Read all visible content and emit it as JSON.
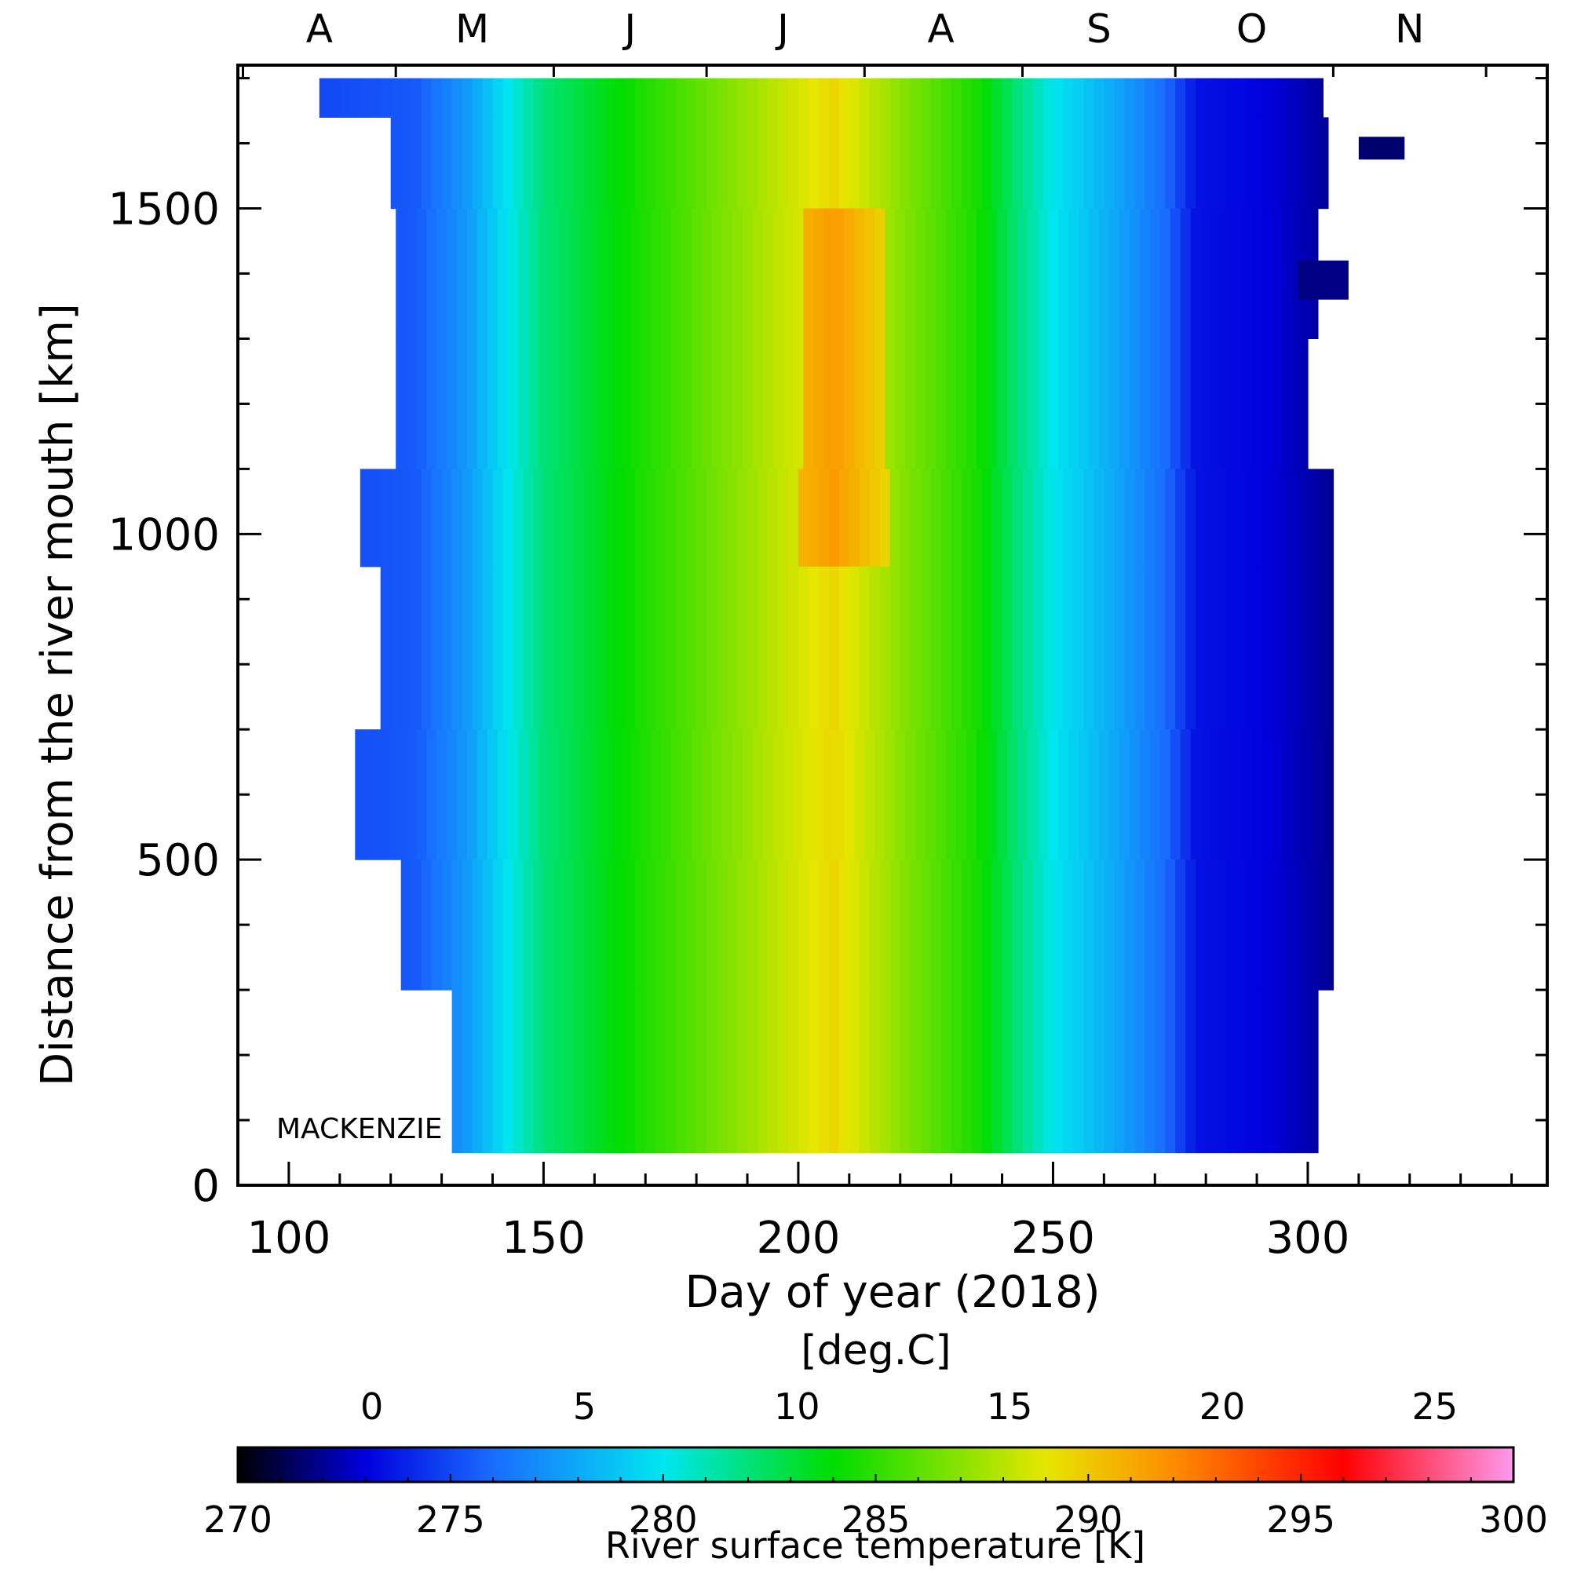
{
  "chart_data": {
    "type": "heatmap",
    "title": "",
    "xlabel": "Day of year (2018)",
    "ylabel": "Distance from the river mouth [km]",
    "annotation": "MACKENZIE",
    "xlim": [
      90,
      347
    ],
    "ylim": [
      0,
      1720
    ],
    "x_ticks": [
      100,
      150,
      200,
      250,
      300
    ],
    "y_ticks": [
      0,
      500,
      1000,
      1500
    ],
    "month_axis": {
      "labels": [
        "A",
        "M",
        "J",
        "J",
        "A",
        "S",
        "O",
        "N"
      ],
      "centers_doy": [
        106,
        136,
        167,
        197,
        228,
        259,
        289,
        320
      ]
    },
    "colorbar": {
      "label": "River surface temperature [K]",
      "top_label": "[deg.C]",
      "range_K": [
        270,
        300
      ],
      "ticks_K": [
        270,
        275,
        280,
        285,
        290,
        295,
        300
      ],
      "ticks_C": [
        0,
        5,
        10,
        15,
        20,
        25
      ],
      "colormap_stops_K": [
        {
          "k": 270,
          "color": "#000000"
        },
        {
          "k": 273,
          "color": "#0000dd"
        },
        {
          "k": 276,
          "color": "#1a6cff"
        },
        {
          "k": 280,
          "color": "#00e6f0"
        },
        {
          "k": 284,
          "color": "#00dd00"
        },
        {
          "k": 289,
          "color": "#e6e600"
        },
        {
          "k": 292,
          "color": "#ff8c00"
        },
        {
          "k": 296,
          "color": "#ff0000"
        },
        {
          "k": 300,
          "color": "#ff99ee"
        }
      ]
    },
    "bands": [
      {
        "y_from": 1640,
        "y_to": 1700,
        "x_from": 106,
        "x_to": 303
      },
      {
        "y_from": 1500,
        "y_to": 1640,
        "x_from": 120,
        "x_to": 304
      },
      {
        "y_from": 1300,
        "y_to": 1500,
        "x_from": 121,
        "x_to": 302
      },
      {
        "y_from": 1100,
        "y_to": 1300,
        "x_from": 121,
        "x_to": 300
      },
      {
        "y_from": 950,
        "y_to": 1100,
        "x_from": 114,
        "x_to": 305
      },
      {
        "y_from": 700,
        "y_to": 950,
        "x_from": 118,
        "x_to": 305
      },
      {
        "y_from": 500,
        "y_to": 700,
        "x_from": 113,
        "x_to": 305
      },
      {
        "y_from": 300,
        "y_to": 500,
        "x_from": 122,
        "x_to": 305
      },
      {
        "y_from": 50,
        "y_to": 300,
        "x_from": 132,
        "x_to": 302
      }
    ],
    "seasonal_profile": [
      {
        "doy": 106,
        "k": 275.0
      },
      {
        "doy": 125,
        "k": 275.5
      },
      {
        "doy": 135,
        "k": 277.5
      },
      {
        "doy": 143,
        "k": 280.0
      },
      {
        "doy": 150,
        "k": 282.0
      },
      {
        "doy": 165,
        "k": 284.0
      },
      {
        "doy": 180,
        "k": 286.0
      },
      {
        "doy": 195,
        "k": 288.0
      },
      {
        "doy": 207,
        "k": 289.5
      },
      {
        "doy": 220,
        "k": 287.0
      },
      {
        "doy": 235,
        "k": 284.5
      },
      {
        "doy": 243,
        "k": 282.0
      },
      {
        "doy": 250,
        "k": 280.0
      },
      {
        "doy": 262,
        "k": 278.0
      },
      {
        "doy": 272,
        "k": 276.0
      },
      {
        "doy": 278,
        "k": 273.5
      },
      {
        "doy": 292,
        "k": 273.0
      },
      {
        "doy": 305,
        "k": 272.0
      }
    ],
    "warm_anomaly": {
      "doy_from": 201,
      "doy_to": 217,
      "y_from": 950,
      "y_to": 1520,
      "k_add": 2.0
    },
    "isolated_patches": [
      {
        "doy_from": 310,
        "doy_to": 319,
        "y_from": 1575,
        "y_to": 1610,
        "k": 271.5
      },
      {
        "doy_from": 298,
        "doy_to": 308,
        "y_from": 1360,
        "y_to": 1420,
        "k": 271.8
      }
    ]
  }
}
